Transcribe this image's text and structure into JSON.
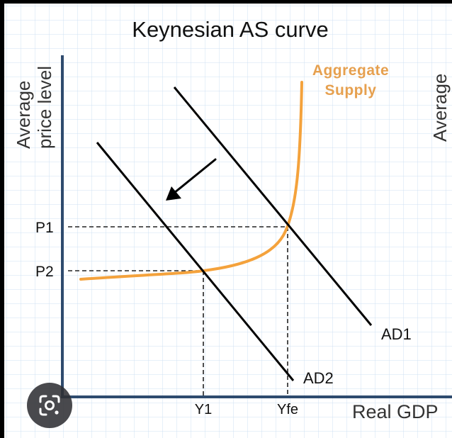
{
  "title": "Keynesian AS curve",
  "y_axis_label_line1": "Average",
  "y_axis_label_line2": "price level",
  "right_edge_label": "Average",
  "x_axis_label": "Real GDP",
  "as_label_line1": "Aggregate",
  "as_label_line2": "Supply",
  "ad1_label": "AD1",
  "ad2_label": "AD2",
  "p1_label": "P1",
  "p2_label": "P2",
  "y1_label": "Y1",
  "yfe_label": "Yfe",
  "colors": {
    "page_background": "#000000",
    "canvas_background": "#ffffff",
    "grid": "#cfe1f3",
    "axis": "#2f4b6e",
    "ad_lines": "#000000",
    "aggregate_supply": "#f4a23c",
    "aggregate_supply_label": "#e6a04f",
    "dashed_guides": "#222222",
    "text": "#111111",
    "lens_button": "#303034"
  },
  "icons": {
    "shift_arrow": "arrow-down-left-icon",
    "lens_button": "google-lens-icon"
  }
}
